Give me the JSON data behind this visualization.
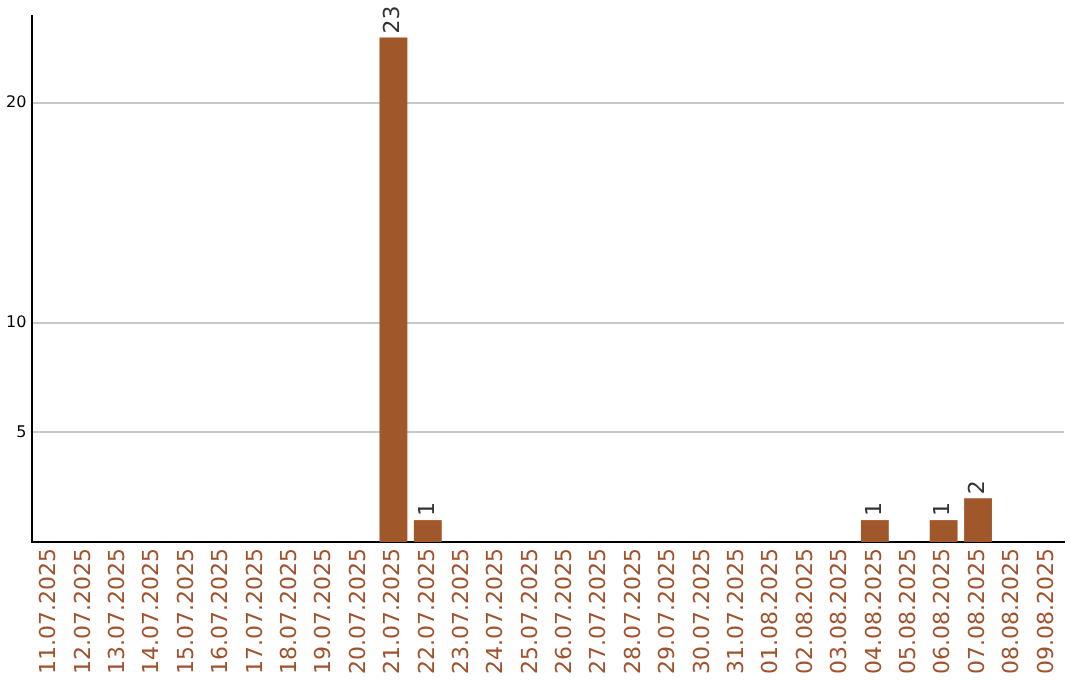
{
  "chart_data": {
    "type": "bar",
    "categories": [
      "11.07.2025",
      "12.07.2025",
      "13.07.2025",
      "14.07.2025",
      "15.07.2025",
      "16.07.2025",
      "17.07.2025",
      "18.07.2025",
      "19.07.2025",
      "20.07.2025",
      "21.07.2025",
      "22.07.2025",
      "23.07.2025",
      "24.07.2025",
      "25.07.2025",
      "26.07.2025",
      "27.07.2025",
      "28.07.2025",
      "29.07.2025",
      "30.07.2025",
      "31.07.2025",
      "01.08.2025",
      "02.08.2025",
      "03.08.2025",
      "04.08.2025",
      "05.08.2025",
      "06.08.2025",
      "07.08.2025",
      "08.08.2025",
      "09.08.2025"
    ],
    "values": [
      0,
      0,
      0,
      0,
      0,
      0,
      0,
      0,
      0,
      0,
      23,
      1,
      0,
      0,
      0,
      0,
      0,
      0,
      0,
      0,
      0,
      0,
      0,
      0,
      1,
      0,
      1,
      2,
      0,
      0
    ],
    "value_labels": [
      null,
      null,
      null,
      null,
      null,
      null,
      null,
      null,
      null,
      null,
      "23",
      "1",
      null,
      null,
      null,
      null,
      null,
      null,
      null,
      null,
      null,
      null,
      null,
      null,
      "1",
      null,
      "1",
      "2",
      null,
      null
    ],
    "color": "#a0582a",
    "ylim": [
      0,
      24
    ],
    "yticks": [
      5,
      10,
      20
    ],
    "grid": "y",
    "legend": false
  }
}
